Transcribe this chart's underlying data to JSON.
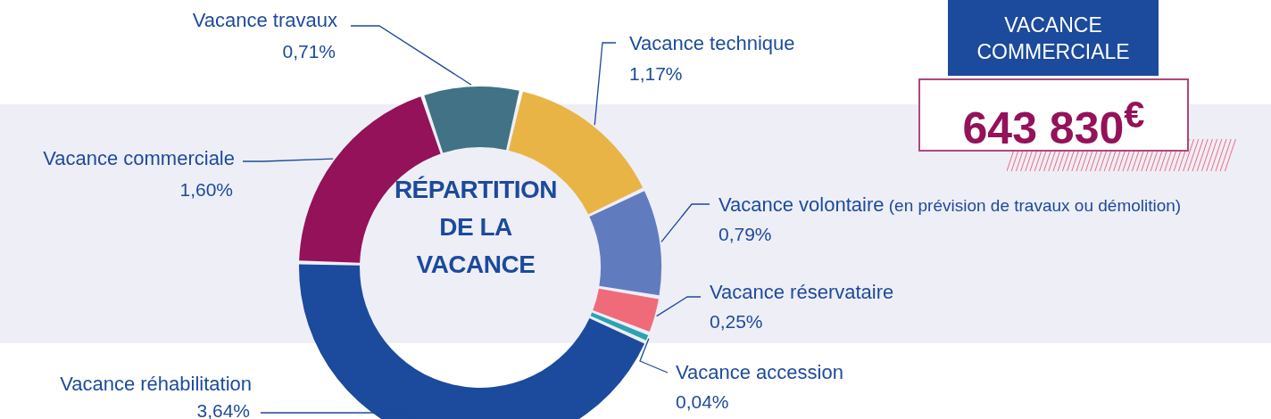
{
  "chart_data": {
    "type": "donut",
    "title": "RÉPARTITION DE LA VACANCE",
    "categories": [
      "Vacance travaux",
      "Vacance technique",
      "Vacance volontaire (en prévision de travaux ou démolition)",
      "Vacance réservataire",
      "Vacance accession",
      "Vacance réhabilitation",
      "Vacance commerciale"
    ],
    "values": [
      0.71,
      1.17,
      0.79,
      0.25,
      0.04,
      3.64,
      1.6
    ],
    "value_labels": [
      "0,71%",
      "1,17%",
      "0,79%",
      "0,25%",
      "0,04%",
      "3,64%",
      "1,60%"
    ],
    "colors": [
      "#417285",
      "#e9b446",
      "#617cbe",
      "#f06b7a",
      "#2ba3b3",
      "#1c4a9c",
      "#941259"
    ],
    "annotations": [
      "VACANCE COMMERCIALE",
      "643 830$^{€}$"
    ]
  }
}
